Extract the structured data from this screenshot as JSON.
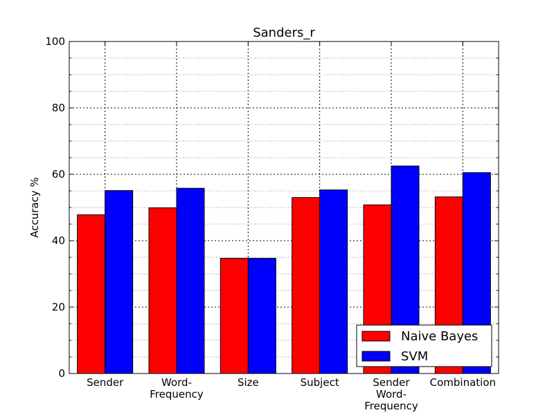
{
  "chart_data": {
    "type": "bar",
    "title": "Sanders_r",
    "xlabel": "",
    "ylabel": "Accuracy %",
    "categories": [
      [
        "Sender"
      ],
      [
        "Word-",
        "Frequency"
      ],
      [
        "Size"
      ],
      [
        "Subject"
      ],
      [
        "Sender",
        "Word-",
        "Frequency"
      ],
      [
        "Combination"
      ]
    ],
    "series": [
      {
        "name": "Naive Bayes",
        "color": "#ff0000",
        "values": [
          47.8,
          49.9,
          34.7,
          53.0,
          50.8,
          53.2
        ]
      },
      {
        "name": "SVM",
        "color": "#0000ff",
        "values": [
          55.1,
          55.8,
          34.7,
          55.3,
          62.5,
          60.5
        ]
      }
    ],
    "ylim": [
      0,
      100
    ],
    "yticks": [
      0,
      20,
      40,
      60,
      80,
      100
    ],
    "grid": true,
    "legend_position": "lower-right"
  }
}
